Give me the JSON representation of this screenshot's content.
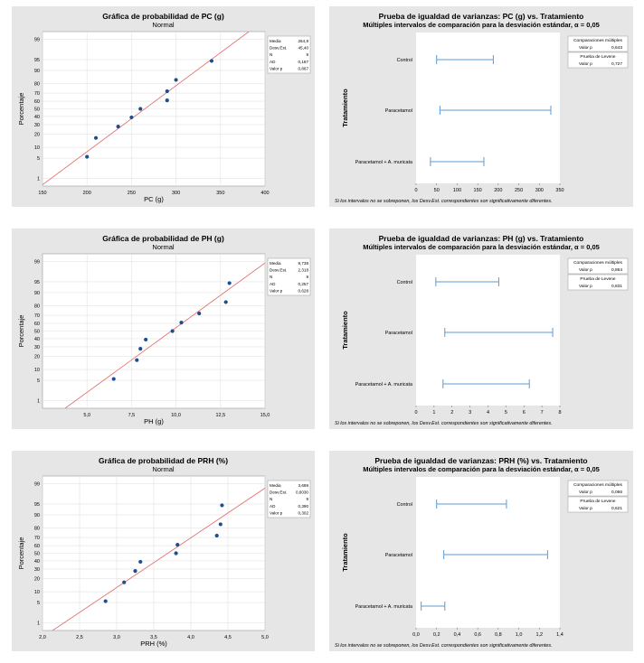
{
  "colors": {
    "panel_bg": "#e6e6e6",
    "plot_bg": "#ffffff",
    "point": "#1f4e8c",
    "fit_line": "#e06666",
    "interval": "#5b9bd5",
    "grid": "#e3e3e3"
  },
  "shared": {
    "prob_ylabel": "Porcentaje",
    "prob_yticks": [
      "1",
      "5",
      "10",
      "20",
      "30",
      "40",
      "50",
      "60",
      "70",
      "80",
      "90",
      "95",
      "99"
    ],
    "var_ylabel": "Tratamiento",
    "var_categories": [
      "Control",
      "Paracetamol",
      "Paracetamol + A. muricata"
    ],
    "var_footnote": "Si los intervalos no se sobreponen, los Desv.Est. correspondientes son significativamente diferentes.",
    "mc_label": "Comparaciones múltiples",
    "levene_label": "Prueba de Levene",
    "pvalue_label": "Valor p",
    "stat_labels": [
      "Media",
      "Desv.Est.",
      "N",
      "AD",
      "Valor p"
    ]
  },
  "chart_data": [
    {
      "type": "scatter",
      "title": "Gráfica de probabilidad de PC (g)",
      "subtitle": "Normal",
      "xlabel": "PC (g)",
      "ylabel": "Porcentaje",
      "xlim": [
        150,
        400
      ],
      "xticks": [
        150,
        200,
        250,
        300,
        350,
        400
      ],
      "x": [
        200,
        210,
        235,
        250,
        260,
        290,
        290,
        300,
        340
      ],
      "y": [
        5.5,
        16.6,
        27.7,
        38.8,
        50,
        61.1,
        72.2,
        83.3,
        94.5
      ],
      "fit": {
        "mean": 264.9,
        "sd": 45.4
      },
      "stats": [
        "264,9",
        "45,40",
        "9",
        "0,187",
        "0,867"
      ]
    },
    {
      "type": "interval",
      "title": "Prueba de igualdad de varianzas: PC (g) vs. Tratamiento",
      "subtitle": "Múltiples intervalos de comparación para la desviación estándar, α = 0,05",
      "xlim": [
        0,
        350
      ],
      "xticks": [
        "0",
        "50",
        "100",
        "150",
        "200",
        "250",
        "300",
        "350"
      ],
      "xtick_values": [
        0,
        50,
        100,
        150,
        200,
        250,
        300,
        350
      ],
      "intervals": [
        [
          50,
          188
        ],
        [
          58,
          328
        ],
        [
          35,
          165
        ]
      ],
      "mc_pvalue": "0,643",
      "levene_pvalue": "0,727"
    },
    {
      "type": "scatter",
      "title": "Gráfica de probabilidad de PH (g)",
      "subtitle": "Normal",
      "xlabel": "PH (g)",
      "ylabel": "Porcentaje",
      "xlim": [
        2.5,
        15.0
      ],
      "xticks": [
        5.0,
        7.5,
        10.0,
        12.5,
        15.0
      ],
      "xtick_labels": [
        "5,0",
        "7,5",
        "10,0",
        "12,5",
        "15,0"
      ],
      "x": [
        6.5,
        7.8,
        8.0,
        8.3,
        9.8,
        10.3,
        11.3,
        12.8,
        13.0
      ],
      "y": [
        5.5,
        16.6,
        27.7,
        38.8,
        50,
        61.1,
        72.2,
        83.3,
        94.5
      ],
      "fit": {
        "mean": 9.738,
        "sd": 2.318
      },
      "stats": [
        "9,738",
        "2,318",
        "9",
        "0,257",
        "0,628"
      ]
    },
    {
      "type": "interval",
      "title": "Prueba de igualdad de varianzas: PH (g) vs. Tratamiento",
      "subtitle": "Múltiples intervalos de comparación para la desviación estándar, α = 0,05",
      "xlim": [
        0,
        8
      ],
      "xticks": [
        "0",
        "1",
        "2",
        "3",
        "4",
        "5",
        "6",
        "7",
        "8"
      ],
      "xtick_values": [
        0,
        1,
        2,
        3,
        4,
        5,
        6,
        7,
        8
      ],
      "intervals": [
        [
          1.1,
          4.6
        ],
        [
          1.6,
          7.6
        ],
        [
          1.5,
          6.3
        ]
      ],
      "mc_pvalue": "0,864",
      "levene_pvalue": "0,831"
    },
    {
      "type": "scatter",
      "title": "Gráfica de probabilidad de PRH (%)",
      "subtitle": "Normal",
      "xlabel": "PRH (%)",
      "ylabel": "Porcentaje",
      "xlim": [
        2.0,
        5.0
      ],
      "xticks": [
        2.0,
        2.5,
        3.0,
        3.5,
        4.0,
        4.5,
        5.0
      ],
      "xtick_labels": [
        "2,0",
        "2,5",
        "3,0",
        "3,5",
        "4,0",
        "4,5",
        "5,0"
      ],
      "x": [
        2.85,
        3.1,
        3.25,
        3.32,
        3.8,
        3.82,
        4.35,
        4.4,
        4.42
      ],
      "y": [
        5.5,
        16.6,
        27.7,
        38.8,
        50,
        61.1,
        72.2,
        83.3,
        94.5
      ],
      "fit": {
        "mean": 3.689,
        "sd": 0.603
      },
      "stats": [
        "3,689",
        "0,6030",
        "9",
        "0,390",
        "0,302"
      ]
    },
    {
      "type": "interval",
      "title": "Prueba de igualdad de varianzas: PRH (%) vs. Tratamiento",
      "subtitle": "Múltiples intervalos de comparación para la desviación estándar, α = 0,05",
      "xlim": [
        0,
        1.4
      ],
      "xticks": [
        "0,0",
        "0,2",
        "0,4",
        "0,6",
        "0,8",
        "1,0",
        "1,2",
        "1,4"
      ],
      "xtick_values": [
        0,
        0.2,
        0.4,
        0.6,
        0.8,
        1.0,
        1.2,
        1.4
      ],
      "intervals": [
        [
          0.2,
          0.88
        ],
        [
          0.27,
          1.28
        ],
        [
          0.05,
          0.28
        ]
      ],
      "mc_pvalue": "0,066",
      "levene_pvalue": "0,621"
    }
  ]
}
